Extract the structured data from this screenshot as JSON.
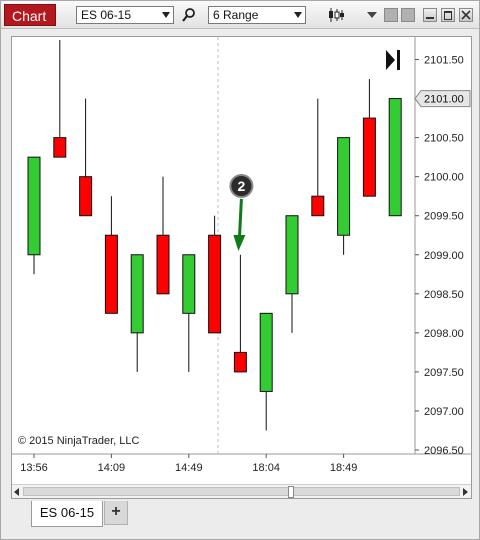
{
  "toolbar": {
    "chart_label": "Chart",
    "instrument_value": "ES 06-15",
    "interval_value": "6 Range"
  },
  "copyright": "© 2015 NinjaTrader, LLC",
  "tabs": [
    {
      "label": "ES 06-15"
    }
  ],
  "add_tab_label": "+",
  "annotation_label": "2",
  "colors": {
    "up": "#33cc33",
    "down": "#ff0000",
    "price_marker_fill": "#e6e6e6",
    "arrow": "#0f7a1a"
  },
  "chart_data": {
    "type": "candlestick",
    "y_ticks": [
      "2101.50",
      "2101.00",
      "2100.50",
      "2100.00",
      "2099.50",
      "2099.00",
      "2098.50",
      "2098.00",
      "2097.50",
      "2097.00",
      "2096.50"
    ],
    "ylim": [
      2096.5,
      2101.75
    ],
    "x_ticks": [
      "13:56",
      "14:09",
      "14:49",
      "18:04",
      "18:49"
    ],
    "current_price": "2101.00",
    "candles": [
      {
        "open": 2099.0,
        "close": 2100.25,
        "high": 2100.25,
        "low": 2098.75
      },
      {
        "open": 2100.5,
        "close": 2100.25,
        "high": 2101.75,
        "low": 2100.25
      },
      {
        "open": 2100.0,
        "close": 2099.5,
        "high": 2101.0,
        "low": 2099.5
      },
      {
        "open": 2099.25,
        "close": 2098.25,
        "high": 2099.75,
        "low": 2098.25
      },
      {
        "open": 2098.0,
        "close": 2099.0,
        "high": 2099.0,
        "low": 2097.5
      },
      {
        "open": 2099.25,
        "close": 2098.5,
        "high": 2100.0,
        "low": 2098.5
      },
      {
        "open": 2098.25,
        "close": 2099.0,
        "high": 2099.0,
        "low": 2097.5
      },
      {
        "open": 2099.25,
        "close": 2098.0,
        "high": 2099.5,
        "low": 2098.0
      },
      {
        "open": 2097.75,
        "close": 2097.5,
        "high": 2099.0,
        "low": 2097.5
      },
      {
        "open": 2097.25,
        "close": 2098.25,
        "high": 2098.25,
        "low": 2096.75
      },
      {
        "open": 2098.5,
        "close": 2099.5,
        "high": 2099.5,
        "low": 2098.0
      },
      {
        "open": 2099.75,
        "close": 2099.5,
        "high": 2101.0,
        "low": 2099.5
      },
      {
        "open": 2099.25,
        "close": 2100.5,
        "high": 2100.5,
        "low": 2099.0
      },
      {
        "open": 2100.75,
        "close": 2099.75,
        "high": 2101.25,
        "low": 2099.75
      },
      {
        "open": 2099.5,
        "close": 2101.0,
        "high": 2101.0,
        "low": 2099.5
      }
    ],
    "grid": false,
    "annotation": {
      "label": "2",
      "candle_index": 8
    }
  }
}
